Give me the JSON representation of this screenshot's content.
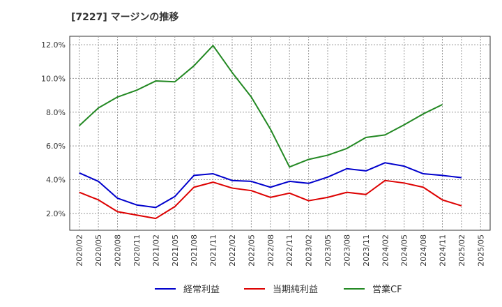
{
  "chart_data": {
    "type": "line",
    "title": "[7227]  マージンの推移",
    "x": [
      "2020/02",
      "2020/05",
      "2020/08",
      "2020/11",
      "2021/02",
      "2021/05",
      "2021/08",
      "2021/11",
      "2022/02",
      "2022/05",
      "2022/08",
      "2022/11",
      "2023/02",
      "2023/05",
      "2023/08",
      "2023/11",
      "2024/02",
      "2024/05",
      "2024/08",
      "2024/11",
      "2025/02",
      "2025/05"
    ],
    "ylim": [
      1.0,
      12.5
    ],
    "yticks": [
      "2.0%",
      "4.0%",
      "6.0%",
      "8.0%",
      "10.0%",
      "12.0%"
    ],
    "ytick_values": [
      2,
      4,
      6,
      8,
      10,
      12
    ],
    "grid": true,
    "legend_position": "bottom",
    "series": [
      {
        "name": "経常利益",
        "color": "#0000cc",
        "values": [
          4.4,
          3.9,
          2.9,
          2.5,
          2.35,
          3.0,
          4.25,
          4.35,
          3.95,
          3.9,
          3.55,
          3.9,
          3.78,
          4.15,
          4.65,
          4.52,
          5.0,
          4.8,
          4.35,
          4.25,
          4.12,
          null
        ]
      },
      {
        "name": "当期純利益",
        "color": "#dd0000",
        "values": [
          3.25,
          2.8,
          2.1,
          1.9,
          1.7,
          2.4,
          3.55,
          3.85,
          3.5,
          3.35,
          2.95,
          3.2,
          2.75,
          2.95,
          3.25,
          3.12,
          3.95,
          3.8,
          3.55,
          2.8,
          2.45,
          null
        ]
      },
      {
        "name": "営業CF",
        "color": "#228822",
        "values": [
          7.2,
          8.25,
          8.9,
          9.3,
          9.85,
          9.8,
          10.75,
          11.95,
          10.35,
          8.9,
          7.0,
          4.75,
          5.2,
          5.45,
          5.85,
          6.5,
          6.65,
          7.25,
          7.9,
          8.45,
          null,
          null
        ]
      }
    ]
  }
}
